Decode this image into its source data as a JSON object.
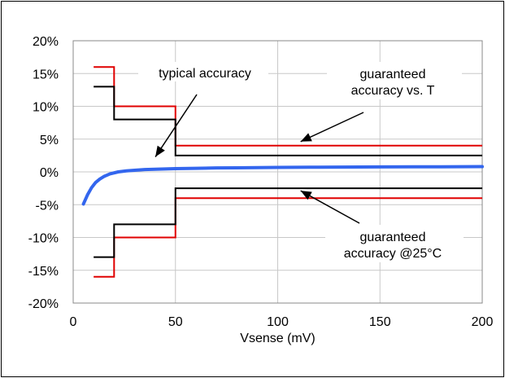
{
  "chart_data": {
    "type": "line",
    "title": "",
    "xlabel": "Vsense (mV)",
    "ylabel": "",
    "xlim": [
      0,
      200
    ],
    "ylim": [
      -20,
      20
    ],
    "x_ticks": [
      0,
      50,
      100,
      150,
      200
    ],
    "y_ticks": [
      20,
      15,
      10,
      5,
      0,
      -5,
      -10,
      -15,
      -20
    ],
    "y_tick_labels": [
      "20%",
      "15%",
      "10%",
      "5%",
      "0%",
      "-5%",
      "-10%",
      "-15%",
      "-20%"
    ],
    "grid": true,
    "legend": "none",
    "series": [
      {
        "key": "guaranteed_vs_t_upper",
        "color": "#e00000",
        "x": [
          10,
          20,
          20,
          50,
          50,
          200
        ],
        "y": [
          16,
          16,
          10,
          10,
          4,
          4
        ]
      },
      {
        "key": "guaranteed_vs_t_lower",
        "color": "#e00000",
        "x": [
          10,
          20,
          20,
          50,
          50,
          200
        ],
        "y": [
          -16,
          -16,
          -10,
          -10,
          -4,
          -4
        ]
      },
      {
        "key": "guaranteed_25c_upper",
        "color": "#000000",
        "x": [
          10,
          20,
          20,
          50,
          50,
          200
        ],
        "y": [
          13,
          13,
          8,
          8,
          2.5,
          2.5
        ]
      },
      {
        "key": "guaranteed_25c_lower",
        "color": "#000000",
        "x": [
          10,
          20,
          20,
          50,
          50,
          200
        ],
        "y": [
          -13,
          -13,
          -8,
          -8,
          -2.5,
          -2.5
        ]
      },
      {
        "key": "typical",
        "color": "#3366ee",
        "x": [
          5,
          7,
          9,
          11,
          13,
          15,
          18,
          22,
          26,
          30,
          35,
          40,
          50,
          60,
          70,
          80,
          100,
          120,
          150,
          180,
          200
        ],
        "y": [
          -4.9,
          -3.5,
          -2.4,
          -1.6,
          -1.1,
          -0.7,
          -0.3,
          0.0,
          0.15,
          0.25,
          0.35,
          0.4,
          0.5,
          0.55,
          0.6,
          0.62,
          0.68,
          0.72,
          0.76,
          0.78,
          0.8
        ]
      }
    ],
    "annotations": [
      {
        "key": "typical",
        "text": [
          "typical accuracy"
        ],
        "arrow_to": [
          37,
          0.8
        ]
      },
      {
        "key": "vs_t",
        "text": [
          "guaranteed",
          "accuracy vs. T"
        ],
        "arrow_to": [
          112,
          4
        ]
      },
      {
        "key": "at25",
        "text": [
          "guaranteed",
          "accuracy @25°C"
        ],
        "arrow_to": [
          112,
          -2.5
        ]
      }
    ]
  }
}
